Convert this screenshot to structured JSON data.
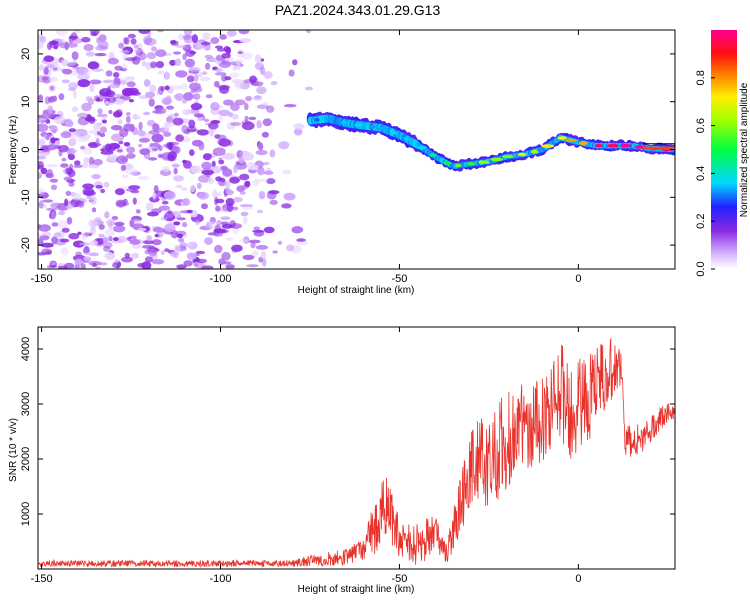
{
  "title": "PAZ1.2024.343.01.29.G13",
  "colors": {
    "snr_line": "#e8322c",
    "noise": "#8a3cf0",
    "track_core": "#ff2020",
    "frame": "#000000"
  },
  "chart_data": [
    {
      "id": "spectrogram",
      "type": "heatmap",
      "xlabel": "Height of straight line (km)",
      "ylabel": "Frequency (Hz)",
      "xlim": [
        -151,
        27
      ],
      "ylim": [
        -25,
        25
      ],
      "xticks": [
        -150,
        -100,
        -50,
        0
      ],
      "yticks": [
        -20,
        -10,
        0,
        10,
        20
      ],
      "colorbar": {
        "label": "Normalized spectral amplitude",
        "range": [
          0,
          1
        ],
        "ticks": [
          "0.0",
          "0.2",
          "0.4",
          "0.6",
          "0.8"
        ],
        "colormap": "rainbow (white-purple-blue-cyan-green-yellow-red-magenta)"
      },
      "noise_region": {
        "x": [
          -151,
          -75
        ],
        "freq": [
          -25,
          25
        ],
        "level": 0.05
      },
      "signal_track": [
        {
          "x": -75,
          "freq": 6,
          "amp": 0.15
        },
        {
          "x": -70,
          "freq": 6.5,
          "amp": 0.25
        },
        {
          "x": -65,
          "freq": 5.5,
          "amp": 0.3
        },
        {
          "x": -60,
          "freq": 5,
          "amp": 0.3
        },
        {
          "x": -55,
          "freq": 4.5,
          "amp": 0.3
        },
        {
          "x": -50,
          "freq": 3,
          "amp": 0.3
        },
        {
          "x": -45,
          "freq": 1,
          "amp": 0.35
        },
        {
          "x": -40,
          "freq": -1.5,
          "amp": 0.45
        },
        {
          "x": -35,
          "freq": -3.5,
          "amp": 0.5
        },
        {
          "x": -30,
          "freq": -3,
          "amp": 0.55
        },
        {
          "x": -25,
          "freq": -2.5,
          "amp": 0.55
        },
        {
          "x": -20,
          "freq": -1.5,
          "amp": 0.55
        },
        {
          "x": -15,
          "freq": -1,
          "amp": 0.6
        },
        {
          "x": -10,
          "freq": 0,
          "amp": 0.6
        },
        {
          "x": -5,
          "freq": 2.5,
          "amp": 0.7
        },
        {
          "x": 0,
          "freq": 1.5,
          "amp": 0.8
        },
        {
          "x": 5,
          "freq": 0.8,
          "amp": 0.85
        },
        {
          "x": 10,
          "freq": 0.8,
          "amp": 0.9
        },
        {
          "x": 15,
          "freq": 0.8,
          "amp": 0.95
        },
        {
          "x": 20,
          "freq": 0.2,
          "amp": 0.95
        },
        {
          "x": 27,
          "freq": 0,
          "amp": 0.95
        }
      ]
    },
    {
      "id": "snr",
      "type": "line",
      "xlabel": "Height of straight line (km)",
      "ylabel": "SNR (10 * v/v)",
      "xlim": [
        -151,
        27
      ],
      "ylim": [
        0,
        4400
      ],
      "xticks": [
        -150,
        -100,
        -50,
        0
      ],
      "yticks": [
        1000,
        2000,
        3000,
        4000
      ],
      "envelope": [
        {
          "x": -151,
          "base": 100,
          "amp": 60
        },
        {
          "x": -80,
          "base": 100,
          "amp": 60
        },
        {
          "x": -75,
          "base": 150,
          "amp": 100
        },
        {
          "x": -65,
          "base": 220,
          "amp": 150
        },
        {
          "x": -60,
          "base": 350,
          "amp": 200
        },
        {
          "x": -57,
          "base": 750,
          "amp": 500
        },
        {
          "x": -54,
          "base": 1200,
          "amp": 600
        },
        {
          "x": -50,
          "base": 500,
          "amp": 400
        },
        {
          "x": -44,
          "base": 450,
          "amp": 400
        },
        {
          "x": -40,
          "base": 700,
          "amp": 350
        },
        {
          "x": -37,
          "base": 250,
          "amp": 200
        },
        {
          "x": -34,
          "base": 900,
          "amp": 500
        },
        {
          "x": -30,
          "base": 1900,
          "amp": 700
        },
        {
          "x": -25,
          "base": 2000,
          "amp": 900
        },
        {
          "x": -20,
          "base": 2300,
          "amp": 900
        },
        {
          "x": -15,
          "base": 2600,
          "amp": 800
        },
        {
          "x": -10,
          "base": 2700,
          "amp": 800
        },
        {
          "x": -6,
          "base": 3300,
          "amp": 900
        },
        {
          "x": -3,
          "base": 3000,
          "amp": 1000
        },
        {
          "x": 0,
          "base": 2900,
          "amp": 900
        },
        {
          "x": 4,
          "base": 3200,
          "amp": 800
        },
        {
          "x": 8,
          "base": 3600,
          "amp": 600
        },
        {
          "x": 12,
          "base": 3700,
          "amp": 500
        },
        {
          "x": 13,
          "base": 2300,
          "amp": 300
        },
        {
          "x": 18,
          "base": 2400,
          "amp": 300
        },
        {
          "x": 22,
          "base": 2700,
          "amp": 250
        },
        {
          "x": 27,
          "base": 2900,
          "amp": 150
        }
      ]
    }
  ]
}
